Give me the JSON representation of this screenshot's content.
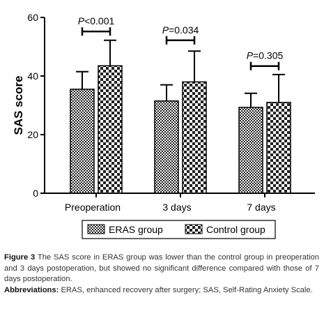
{
  "chart_data": {
    "type": "bar",
    "ylabel": "SAS score",
    "ylim": [
      0,
      60
    ],
    "yticks": [
      0,
      20,
      40,
      60
    ],
    "categories": [
      "Preoperation",
      "3 days",
      "7 days"
    ],
    "series": [
      {
        "name": "ERAS group",
        "pattern": "checker-fine",
        "values": [
          35.5,
          31.5,
          29.3
        ],
        "errors": [
          6.0,
          5.5,
          4.8
        ]
      },
      {
        "name": "Control group",
        "pattern": "checker-coarse",
        "values": [
          43.5,
          38.0,
          31.0
        ],
        "errors": [
          8.7,
          10.5,
          9.5
        ]
      }
    ],
    "annotations": [
      {
        "category": "Preoperation",
        "label": "P<0.001",
        "bracket_y": 55.2
      },
      {
        "category": "3 days",
        "label": "P=0.034",
        "bracket_y": 52.2
      },
      {
        "category": "7 days",
        "label": "P=0.305",
        "bracket_y": 43.4
      }
    ],
    "legend_position": "bottom"
  },
  "caption": {
    "figure_label": "Figure 3",
    "figure_text": "The SAS score in ERAS group was lower than the control group in preoperation and 3 days postoperation, but showed no significant difference compared with those of 7 days postoperation.",
    "abbr_label": "Abbreviations:",
    "abbr_text": "ERAS, enhanced recovery after surgery; SAS, Self-Rating Anxiety Scale."
  }
}
